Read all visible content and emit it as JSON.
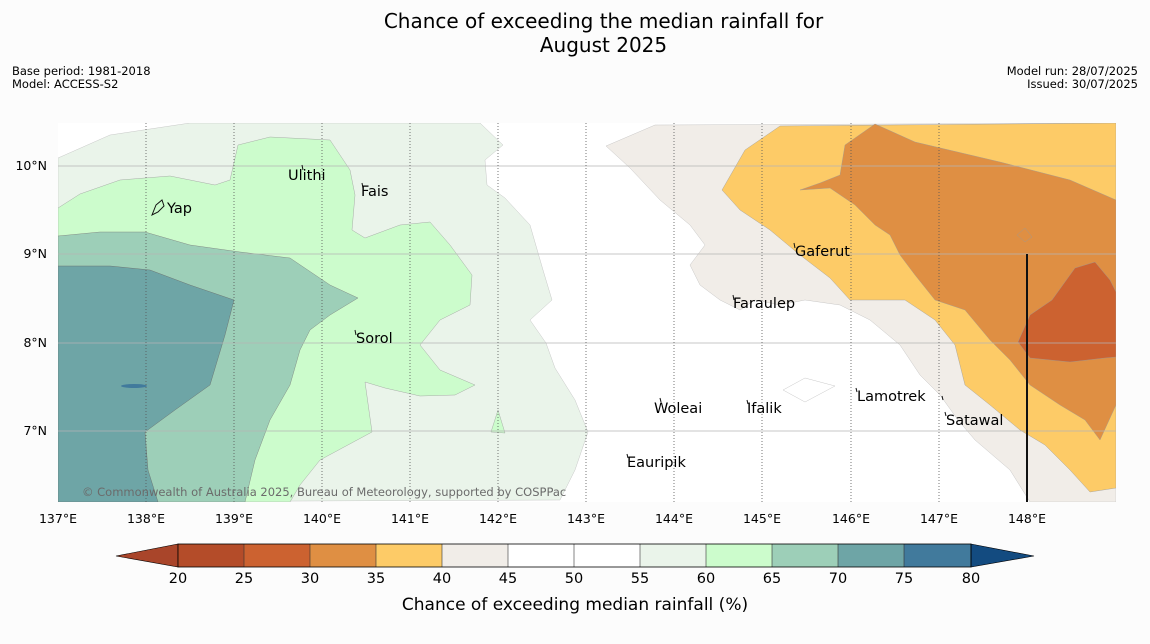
{
  "title": "Chance of exceeding the median rainfall for\nAugust 2025",
  "meta": {
    "base_period": "Base period: 1981-2018",
    "model": "Model: ACCESS-S2",
    "model_run": "Model run: 28/07/2025",
    "issued": "Issued: 30/07/2025"
  },
  "map": {
    "lat_ticks": [
      "10°N",
      "9°N",
      "8°N",
      "7°N"
    ],
    "lon_ticks": [
      "137°E",
      "138°E",
      "139°E",
      "140°E",
      "141°E",
      "142°E",
      "143°E",
      "144°E",
      "145°E",
      "146°E",
      "147°E",
      "148°E"
    ],
    "copyright": "© Commonwealth of Australia 2025, Bureau of Meteorology, supported by COSPPac",
    "places": [
      {
        "name": "Ulithi",
        "icon": "island-marker"
      },
      {
        "name": "Fais",
        "icon": "island-marker"
      },
      {
        "name": "Yap",
        "icon": "island-outline"
      },
      {
        "name": "Gaferut",
        "icon": "island-marker"
      },
      {
        "name": "Faraulep",
        "icon": "island-marker"
      },
      {
        "name": "Sorol",
        "icon": "island-marker"
      },
      {
        "name": "Woleai",
        "icon": "island-marker"
      },
      {
        "name": "Ifalik",
        "icon": "island-marker"
      },
      {
        "name": "Lamotrek",
        "icon": "island-marker"
      },
      {
        "name": "Satawal",
        "icon": "island-marker"
      },
      {
        "name": "Eauripik",
        "icon": "island-marker"
      }
    ]
  },
  "colorbar": {
    "label": "Chance of exceeding median rainfall (%)",
    "ticks": [
      "20",
      "25",
      "30",
      "35",
      "40",
      "45",
      "50",
      "55",
      "60",
      "65",
      "70",
      "75",
      "80"
    ],
    "colors": {
      "below_20": "#a9452a",
      "20_25": "#b44c29",
      "25_30": "#cc6230",
      "30_35": "#df8f43",
      "35_40": "#fdcb67",
      "40_45": "#f1ede8",
      "45_50": "#ffffff",
      "50_55": "#ffffff",
      "55_60": "#eaf4ea",
      "60_65": "#ccfccc",
      "65_70": "#9dcfb8",
      "70_75": "#6ea5a6",
      "75_80": "#417a9c",
      "above_80": "#134b80"
    }
  }
}
